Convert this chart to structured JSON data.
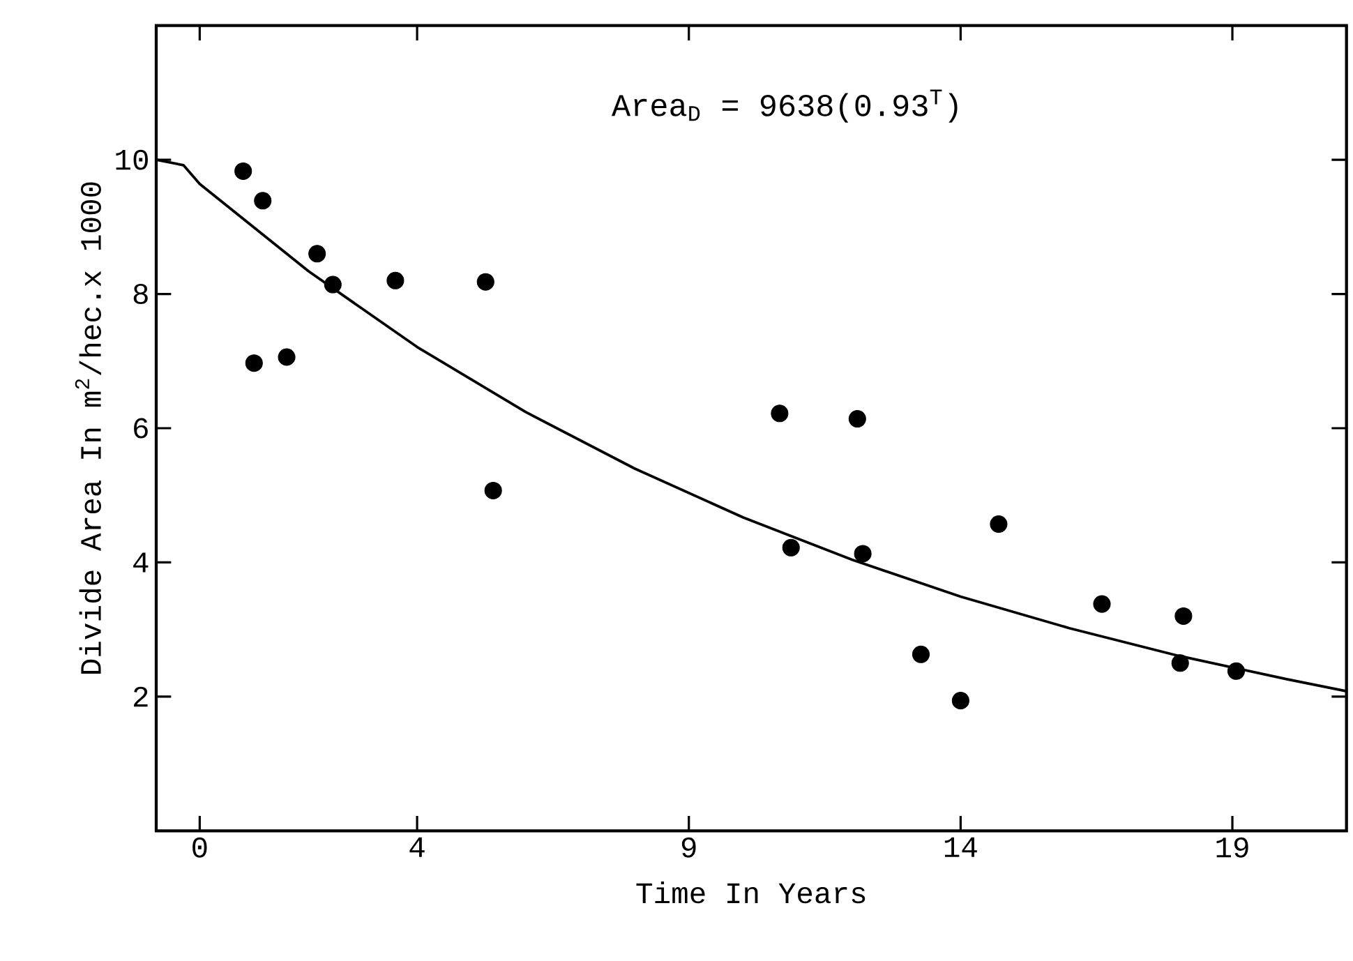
{
  "chart_data": {
    "type": "scatter",
    "xlabel": "Time In Years",
    "ylabel": "Divide Area In m$^{2}$/hec.x 1000",
    "annotations": [
      "Area$_{D}$ = 9638(0.93$^{T}$)"
    ],
    "xlim": [
      -0.8,
      21.1
    ],
    "ylim": [
      0,
      12
    ],
    "xticks": [
      0,
      4,
      9,
      14,
      19
    ],
    "yticks": [
      2,
      4,
      6,
      8,
      10
    ],
    "marker": "circle",
    "series": [
      {
        "color": "#000000",
        "x": [
          0.8,
          1.16,
          1.0,
          1.6,
          2.16,
          2.45,
          3.6,
          5.26,
          5.4,
          10.67,
          10.88,
          12.1,
          12.2,
          13.27,
          14.0,
          14.7,
          16.6,
          18.1,
          18.04,
          19.07
        ],
        "values": [
          9.83,
          9.39,
          6.97,
          7.06,
          8.6,
          8.14,
          8.2,
          8.18,
          5.07,
          6.22,
          4.22,
          6.14,
          4.13,
          2.63,
          1.94,
          4.57,
          3.38,
          3.2,
          2.5,
          2.38
        ]
      },
      {
        "type": "line",
        "color": "#000000",
        "marker": "none",
        "x": [
          -0.8,
          -0.3,
          0,
          2,
          4,
          6,
          8,
          10,
          12,
          14,
          16,
          18,
          20,
          21.1
        ],
        "values": [
          10.0,
          9.92,
          9.64,
          8.34,
          7.21,
          6.24,
          5.4,
          4.67,
          4.04,
          3.49,
          3.02,
          2.61,
          2.26,
          2.08
        ]
      }
    ]
  }
}
